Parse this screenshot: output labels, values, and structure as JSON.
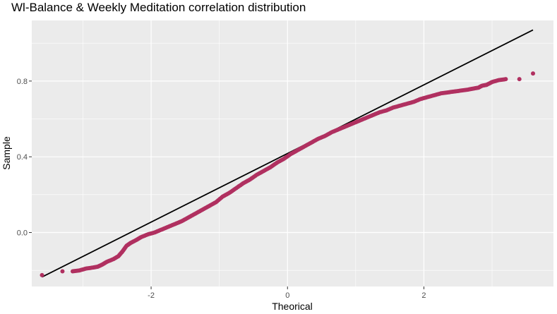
{
  "chart_data": {
    "type": "scatter",
    "title": "Wl-Balance & Weekly Meditation correlation distribution",
    "xlabel": "Theorical",
    "ylabel": "Sample",
    "xlim": [
      -3.75,
      3.9
    ],
    "ylim": [
      -0.285,
      1.12
    ],
    "x_ticks": [
      {
        "value": -2,
        "label": "-2"
      },
      {
        "value": 0,
        "label": "0"
      },
      {
        "value": 2,
        "label": "2"
      }
    ],
    "y_ticks": [
      {
        "value": 0.0,
        "label": "0.0"
      },
      {
        "value": 0.4,
        "label": "0.4"
      },
      {
        "value": 0.8,
        "label": "0.8"
      }
    ],
    "grid": true,
    "point_color": "#B03060",
    "reference_line": {
      "x": [
        -3.6,
        3.6
      ],
      "y": [
        -0.235,
        1.07
      ],
      "color": "#000000"
    },
    "series": [
      {
        "points": [
          [
            -3.6,
            -0.225
          ],
          [
            -3.3,
            -0.205
          ],
          [
            -3.15,
            -0.205
          ],
          [
            -3.05,
            -0.2
          ],
          [
            -2.95,
            -0.19
          ],
          [
            -2.85,
            -0.185
          ],
          [
            -2.78,
            -0.18
          ],
          [
            -2.72,
            -0.17
          ],
          [
            -2.65,
            -0.155
          ],
          [
            -2.55,
            -0.14
          ],
          [
            -2.48,
            -0.125
          ],
          [
            -2.42,
            -0.1
          ],
          [
            -2.36,
            -0.07
          ],
          [
            -2.3,
            -0.055
          ],
          [
            -2.22,
            -0.04
          ],
          [
            -2.15,
            -0.025
          ],
          [
            -2.05,
            -0.01
          ],
          [
            -1.95,
            0.0
          ],
          [
            -1.85,
            0.015
          ],
          [
            -1.75,
            0.03
          ],
          [
            -1.65,
            0.045
          ],
          [
            -1.55,
            0.06
          ],
          [
            -1.45,
            0.08
          ],
          [
            -1.35,
            0.1
          ],
          [
            -1.25,
            0.12
          ],
          [
            -1.15,
            0.14
          ],
          [
            -1.05,
            0.16
          ],
          [
            -0.95,
            0.19
          ],
          [
            -0.85,
            0.21
          ],
          [
            -0.75,
            0.235
          ],
          [
            -0.65,
            0.26
          ],
          [
            -0.55,
            0.28
          ],
          [
            -0.45,
            0.305
          ],
          [
            -0.35,
            0.325
          ],
          [
            -0.25,
            0.345
          ],
          [
            -0.15,
            0.37
          ],
          [
            -0.05,
            0.39
          ],
          [
            0.05,
            0.415
          ],
          [
            0.15,
            0.435
          ],
          [
            0.25,
            0.455
          ],
          [
            0.35,
            0.475
          ],
          [
            0.45,
            0.495
          ],
          [
            0.55,
            0.51
          ],
          [
            0.65,
            0.53
          ],
          [
            0.75,
            0.545
          ],
          [
            0.85,
            0.56
          ],
          [
            0.95,
            0.575
          ],
          [
            1.05,
            0.59
          ],
          [
            1.15,
            0.605
          ],
          [
            1.25,
            0.62
          ],
          [
            1.35,
            0.635
          ],
          [
            1.45,
            0.645
          ],
          [
            1.55,
            0.66
          ],
          [
            1.65,
            0.67
          ],
          [
            1.75,
            0.68
          ],
          [
            1.85,
            0.69
          ],
          [
            1.95,
            0.705
          ],
          [
            2.05,
            0.715
          ],
          [
            2.15,
            0.725
          ],
          [
            2.25,
            0.735
          ],
          [
            2.35,
            0.74
          ],
          [
            2.45,
            0.745
          ],
          [
            2.55,
            0.75
          ],
          [
            2.65,
            0.755
          ],
          [
            2.72,
            0.76
          ],
          [
            2.8,
            0.765
          ],
          [
            2.85,
            0.775
          ],
          [
            2.92,
            0.78
          ],
          [
            3.0,
            0.795
          ],
          [
            3.1,
            0.805
          ],
          [
            3.2,
            0.81
          ],
          [
            3.4,
            0.81
          ],
          [
            3.6,
            0.84
          ]
        ]
      }
    ]
  }
}
